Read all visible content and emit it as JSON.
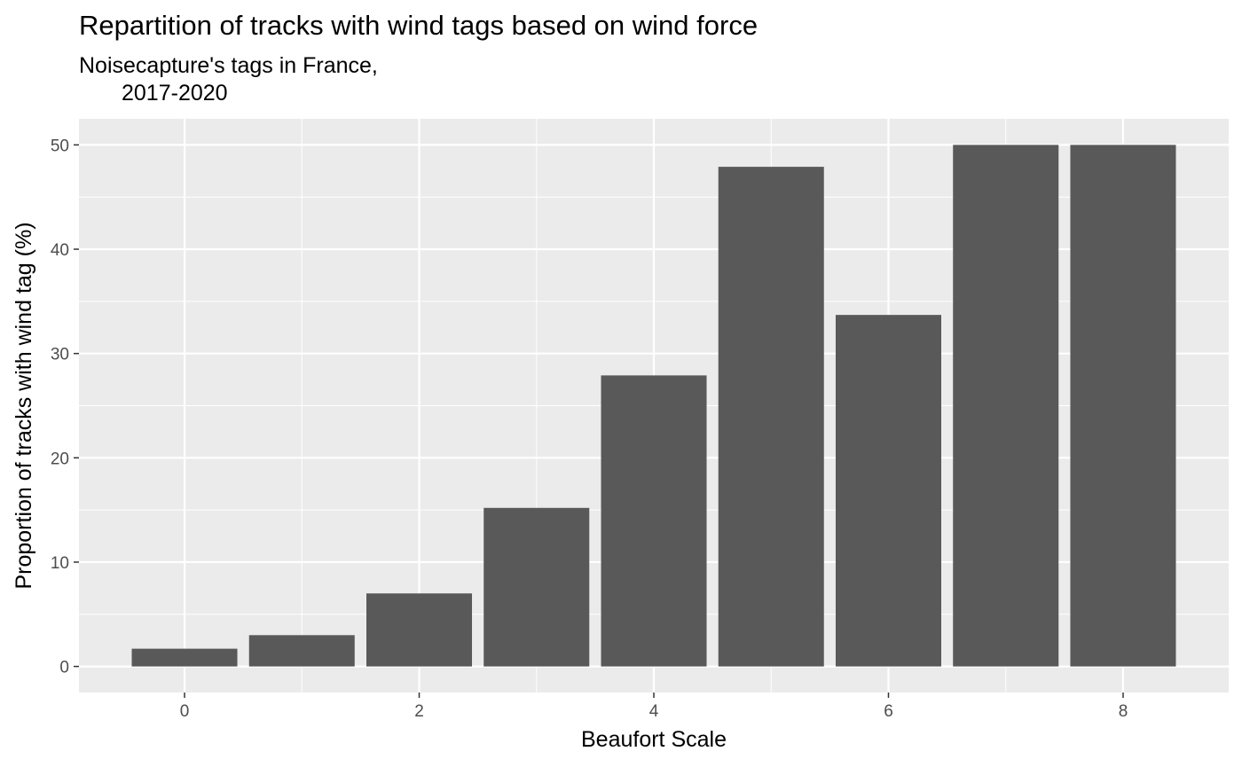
{
  "chart_data": {
    "type": "bar",
    "title": "Repartition of tracks with wind tags based on wind force",
    "subtitle_lines": [
      "Noisecapture's tags in France,",
      "2017-2020"
    ],
    "xlabel": "Beaufort Scale",
    "ylabel": "Proportion of tracks with wind tag (%)",
    "categories": [
      0,
      1,
      2,
      3,
      4,
      5,
      6,
      7,
      8
    ],
    "values": [
      1.7,
      3.0,
      7.0,
      15.2,
      27.9,
      47.9,
      33.7,
      50.0,
      50.0
    ],
    "xlim": [
      -0.9,
      8.9
    ],
    "ylim": [
      -2.5,
      52.5
    ],
    "x_ticks": [
      0,
      2,
      4,
      6,
      8
    ],
    "y_ticks": [
      0,
      10,
      20,
      30,
      40,
      50
    ],
    "grid": true,
    "legend": "none",
    "colors": {
      "bar": "#595959",
      "panel": "#ebebeb",
      "grid": "#ffffff",
      "tick_label": "#4d4d4d"
    }
  }
}
